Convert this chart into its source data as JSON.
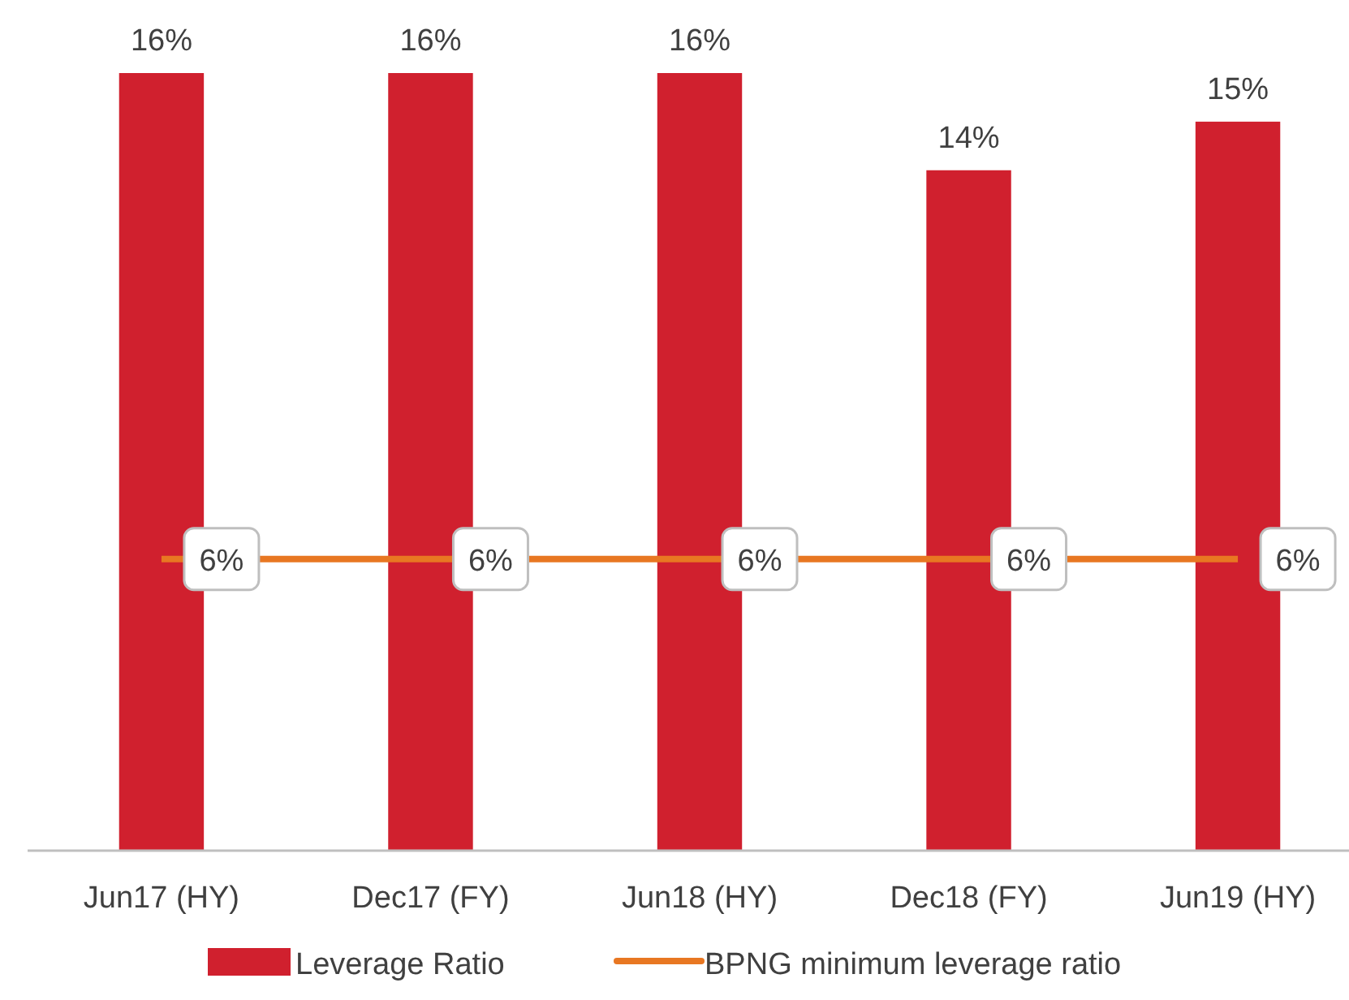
{
  "chart_data": {
    "type": "bar",
    "categories": [
      "Jun17 (HY)",
      "Dec17 (FY)",
      "Jun18 (HY)",
      "Dec18 (FY)",
      "Jun19 (HY)"
    ],
    "tick_labels": "x",
    "legend": "bottom",
    "grid": false,
    "series": [
      {
        "name": "Leverage Ratio",
        "color": "#d0202e",
        "values": [
          16,
          16,
          16,
          14,
          15
        ],
        "value_labels": [
          "16%",
          "16%",
          "16%",
          "14%",
          "15%"
        ]
      },
      {
        "name": "BPNG minimum leverage ratio",
        "type": "line",
        "color": "#e87722",
        "values": [
          6,
          6,
          6,
          6,
          6
        ],
        "value_labels": [
          "6%",
          "6%",
          "6%",
          "6%",
          "6%"
        ],
        "marker": "none",
        "line_style": "solid"
      }
    ]
  }
}
